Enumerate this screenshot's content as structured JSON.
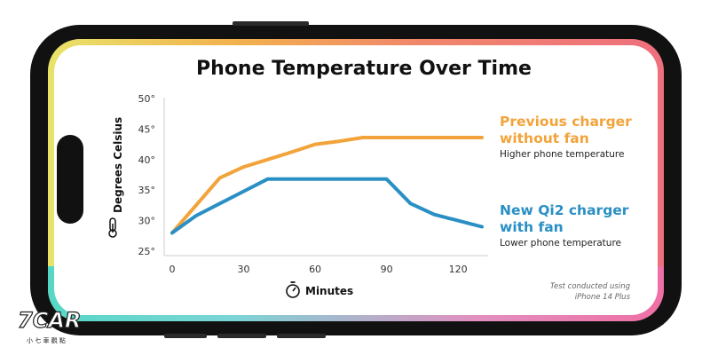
{
  "chart_data": {
    "type": "line",
    "title": "Phone Temperature Over Time",
    "xlabel": "Minutes",
    "ylabel": "Degrees Celsius",
    "xlim": [
      0,
      130
    ],
    "ylim": [
      25,
      50
    ],
    "xticks": [
      0,
      30,
      60,
      90,
      120
    ],
    "yticks": [
      25,
      30,
      35,
      40,
      45,
      50
    ],
    "y_tick_suffix": "°",
    "grid": false,
    "series": [
      {
        "name": "Previous charger without fan",
        "name_lines": [
          "Previous charger",
          "without fan"
        ],
        "subtitle": "Higher phone temperature",
        "color": "#f2a33a",
        "x": [
          0,
          10,
          20,
          30,
          40,
          50,
          60,
          70,
          80,
          90,
          100,
          110,
          120,
          130
        ],
        "y": [
          28,
          32.5,
          37,
          38.8,
          40,
          41.2,
          42.5,
          43,
          43.6,
          43.6,
          43.6,
          43.6,
          43.6,
          43.6
        ]
      },
      {
        "name": "New Qi2 charger with fan",
        "name_lines": [
          "New Qi2 charger",
          "with fan"
        ],
        "subtitle": "Lower phone temperature",
        "color": "#2a8fc4",
        "x": [
          0,
          10,
          20,
          30,
          40,
          50,
          60,
          70,
          80,
          90,
          100,
          110,
          120,
          130
        ],
        "y": [
          28,
          30.8,
          32.8,
          34.8,
          36.8,
          36.8,
          36.8,
          36.8,
          36.8,
          36.8,
          32.8,
          31,
          30,
          29
        ]
      }
    ],
    "note_lines": [
      "Test conducted using",
      "iPhone 14 Plus"
    ]
  },
  "watermark": {
    "logo_text": "7CAR",
    "caption": "小 七 車 觀 點"
  },
  "icons": {
    "ylabel": "thermometer-icon",
    "xlabel": "stopwatch-icon"
  },
  "colors": {
    "text": "#111111",
    "axis": "#cccccc",
    "tick_text": "#333333"
  }
}
